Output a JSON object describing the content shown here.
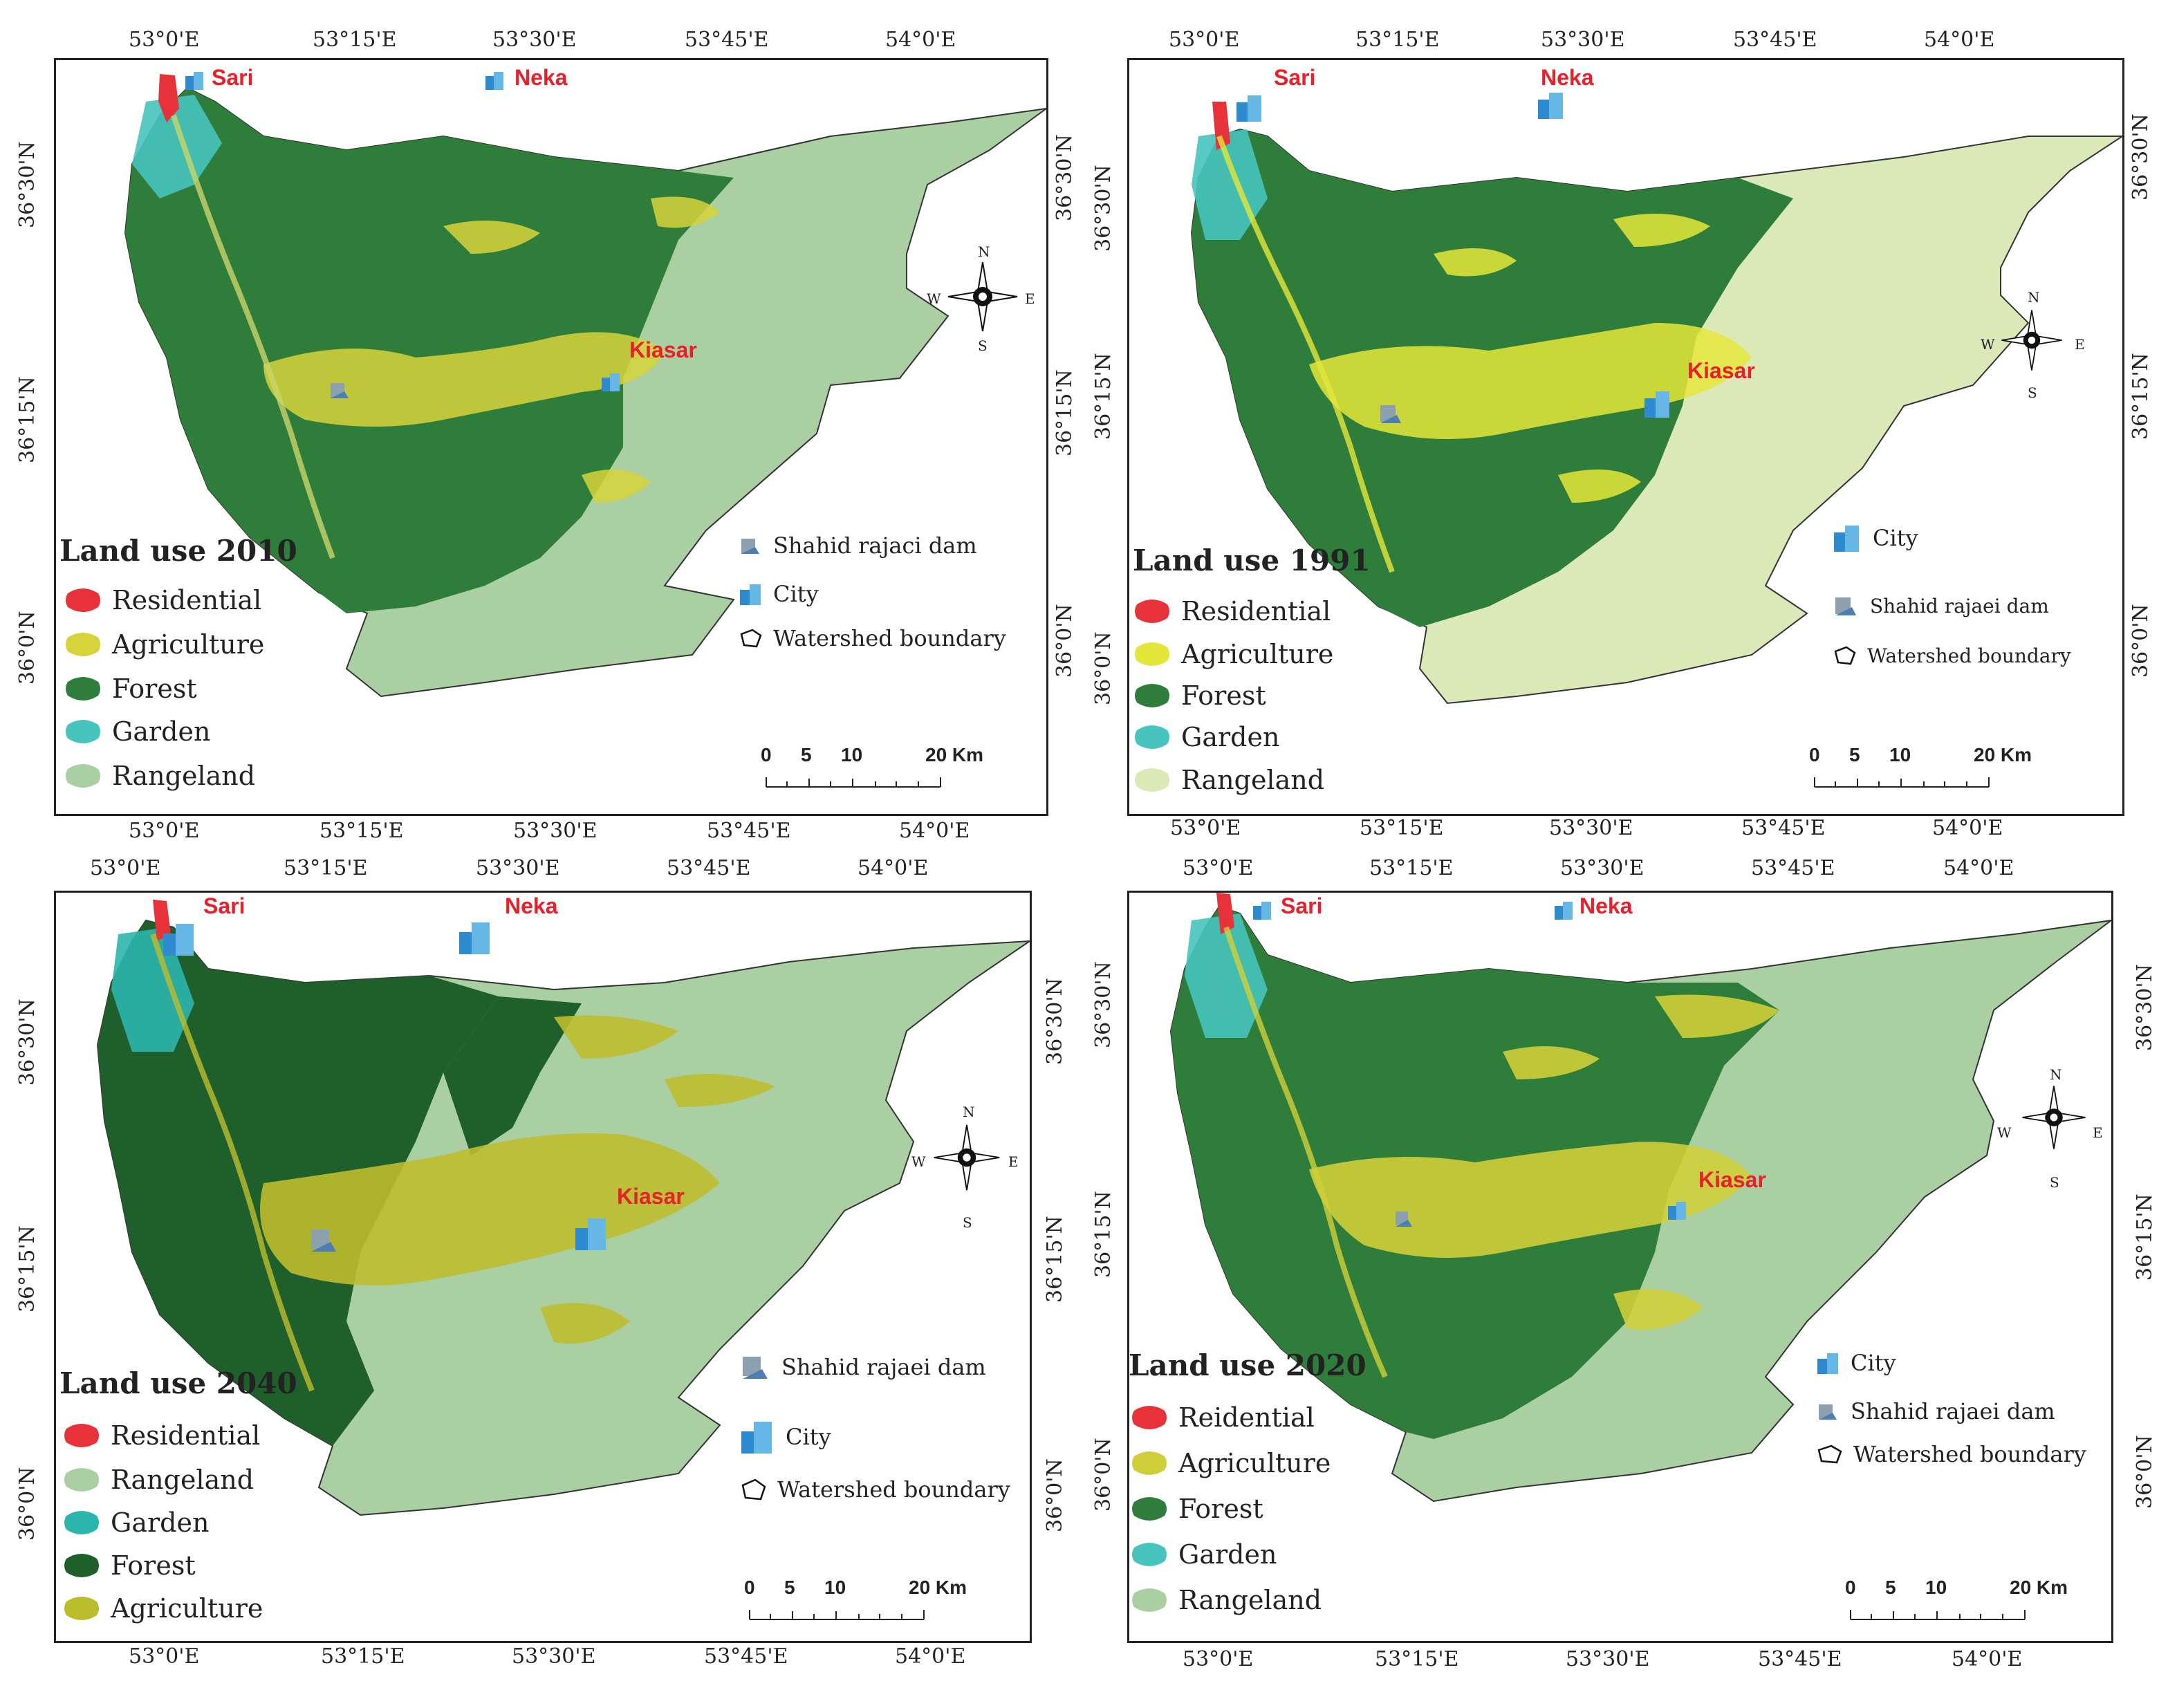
{
  "colors": {
    "residential": "#e8323a",
    "agriculture": "#d6d33a",
    "forest": "#2f7d3a",
    "garden": "#46c4bd",
    "rangeland": "#a9cfa3",
    "rangeland_1991": "#dbe9b8",
    "city_label": "#e8202a"
  },
  "icons": {
    "city": "building-icon",
    "dam": "dam-icon",
    "boundary": "watershed-boundary-icon",
    "north": "north-arrow-icon"
  },
  "common": {
    "lon_ticks": [
      "53°0'E",
      "53°15'E",
      "53°30'E",
      "53°45'E",
      "54°0'E"
    ],
    "lat_ticks": [
      "36°30'N",
      "36°15'N",
      "36°0'N"
    ],
    "cities": {
      "sari": "Sari",
      "neka": "Neka",
      "kiasar": "Kiasar"
    },
    "compass": {
      "n": "N",
      "s": "S",
      "e": "E",
      "w": "W"
    },
    "scale": {
      "t0": "0",
      "t1": "5",
      "t2": "10",
      "t3": "20 Km"
    }
  },
  "panels": {
    "p2010": {
      "title": "Land use 2010",
      "legend": [
        "Residential",
        "Agriculture",
        "Forest",
        "Garden",
        "Rangeland"
      ],
      "dam": "Shahid rajaci dam",
      "city": "City",
      "boundary": "Watershed boundary"
    },
    "p1991": {
      "title": "Land use 1991",
      "legend": [
        "Residential",
        "Agriculture",
        "Forest",
        "Garden",
        "Rangeland"
      ],
      "city": "City",
      "dam": "Shahid rajaei dam",
      "boundary": "Watershed boundary"
    },
    "p2040": {
      "title": "Land use 2040",
      "legend": [
        "Residential",
        "Rangeland",
        "Garden",
        "Forest",
        "Agriculture"
      ],
      "dam": "Shahid rajaei dam",
      "city": "City",
      "boundary": "Watershed boundary"
    },
    "p2020": {
      "title": "Land use 2020",
      "legend": [
        "Reidential",
        "Agriculture",
        "Forest",
        "Garden",
        "Rangeland"
      ],
      "city": "City",
      "dam": "Shahid rajaei dam",
      "boundary": "Watershed boundary"
    }
  }
}
